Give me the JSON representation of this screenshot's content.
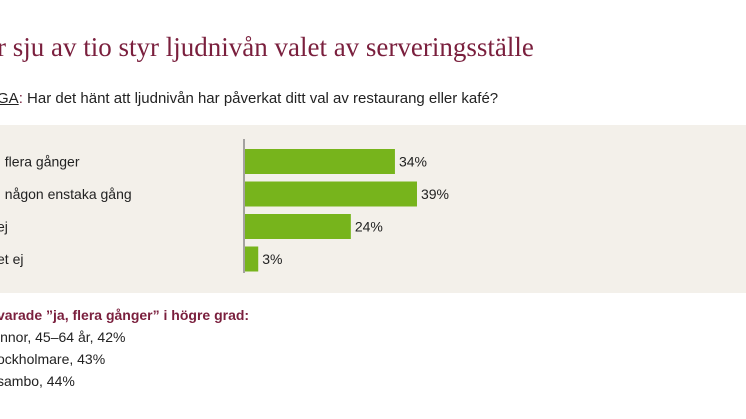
{
  "title": "r sju av tio styr ljudnivån valet av serveringsställe",
  "question": {
    "label": "GA",
    "colon": ":",
    "text": " Har det hänt att ljudnivån har påverkat ditt val av restaurang eller kafé?"
  },
  "colors": {
    "bar": "#77b41c",
    "title": "#7a1f3d",
    "panel": "#f3f0ea"
  },
  "chart_data": {
    "type": "bar",
    "orientation": "horizontal",
    "categories": [
      ", flera gånger",
      ", någon enstaka gång",
      "ej",
      "et ej"
    ],
    "values": [
      34,
      39,
      24,
      3
    ],
    "value_labels": [
      "34%",
      "39%",
      "24%",
      "3%"
    ],
    "xlim": [
      0,
      100
    ],
    "grid": false,
    "legend": "none"
  },
  "notes": {
    "heading": "varade ”ja, flera gånger” i högre grad:",
    "items": [
      "innor, 45–64 år, 42%",
      "ockholmare, 43%",
      "sambo, 44%"
    ]
  }
}
